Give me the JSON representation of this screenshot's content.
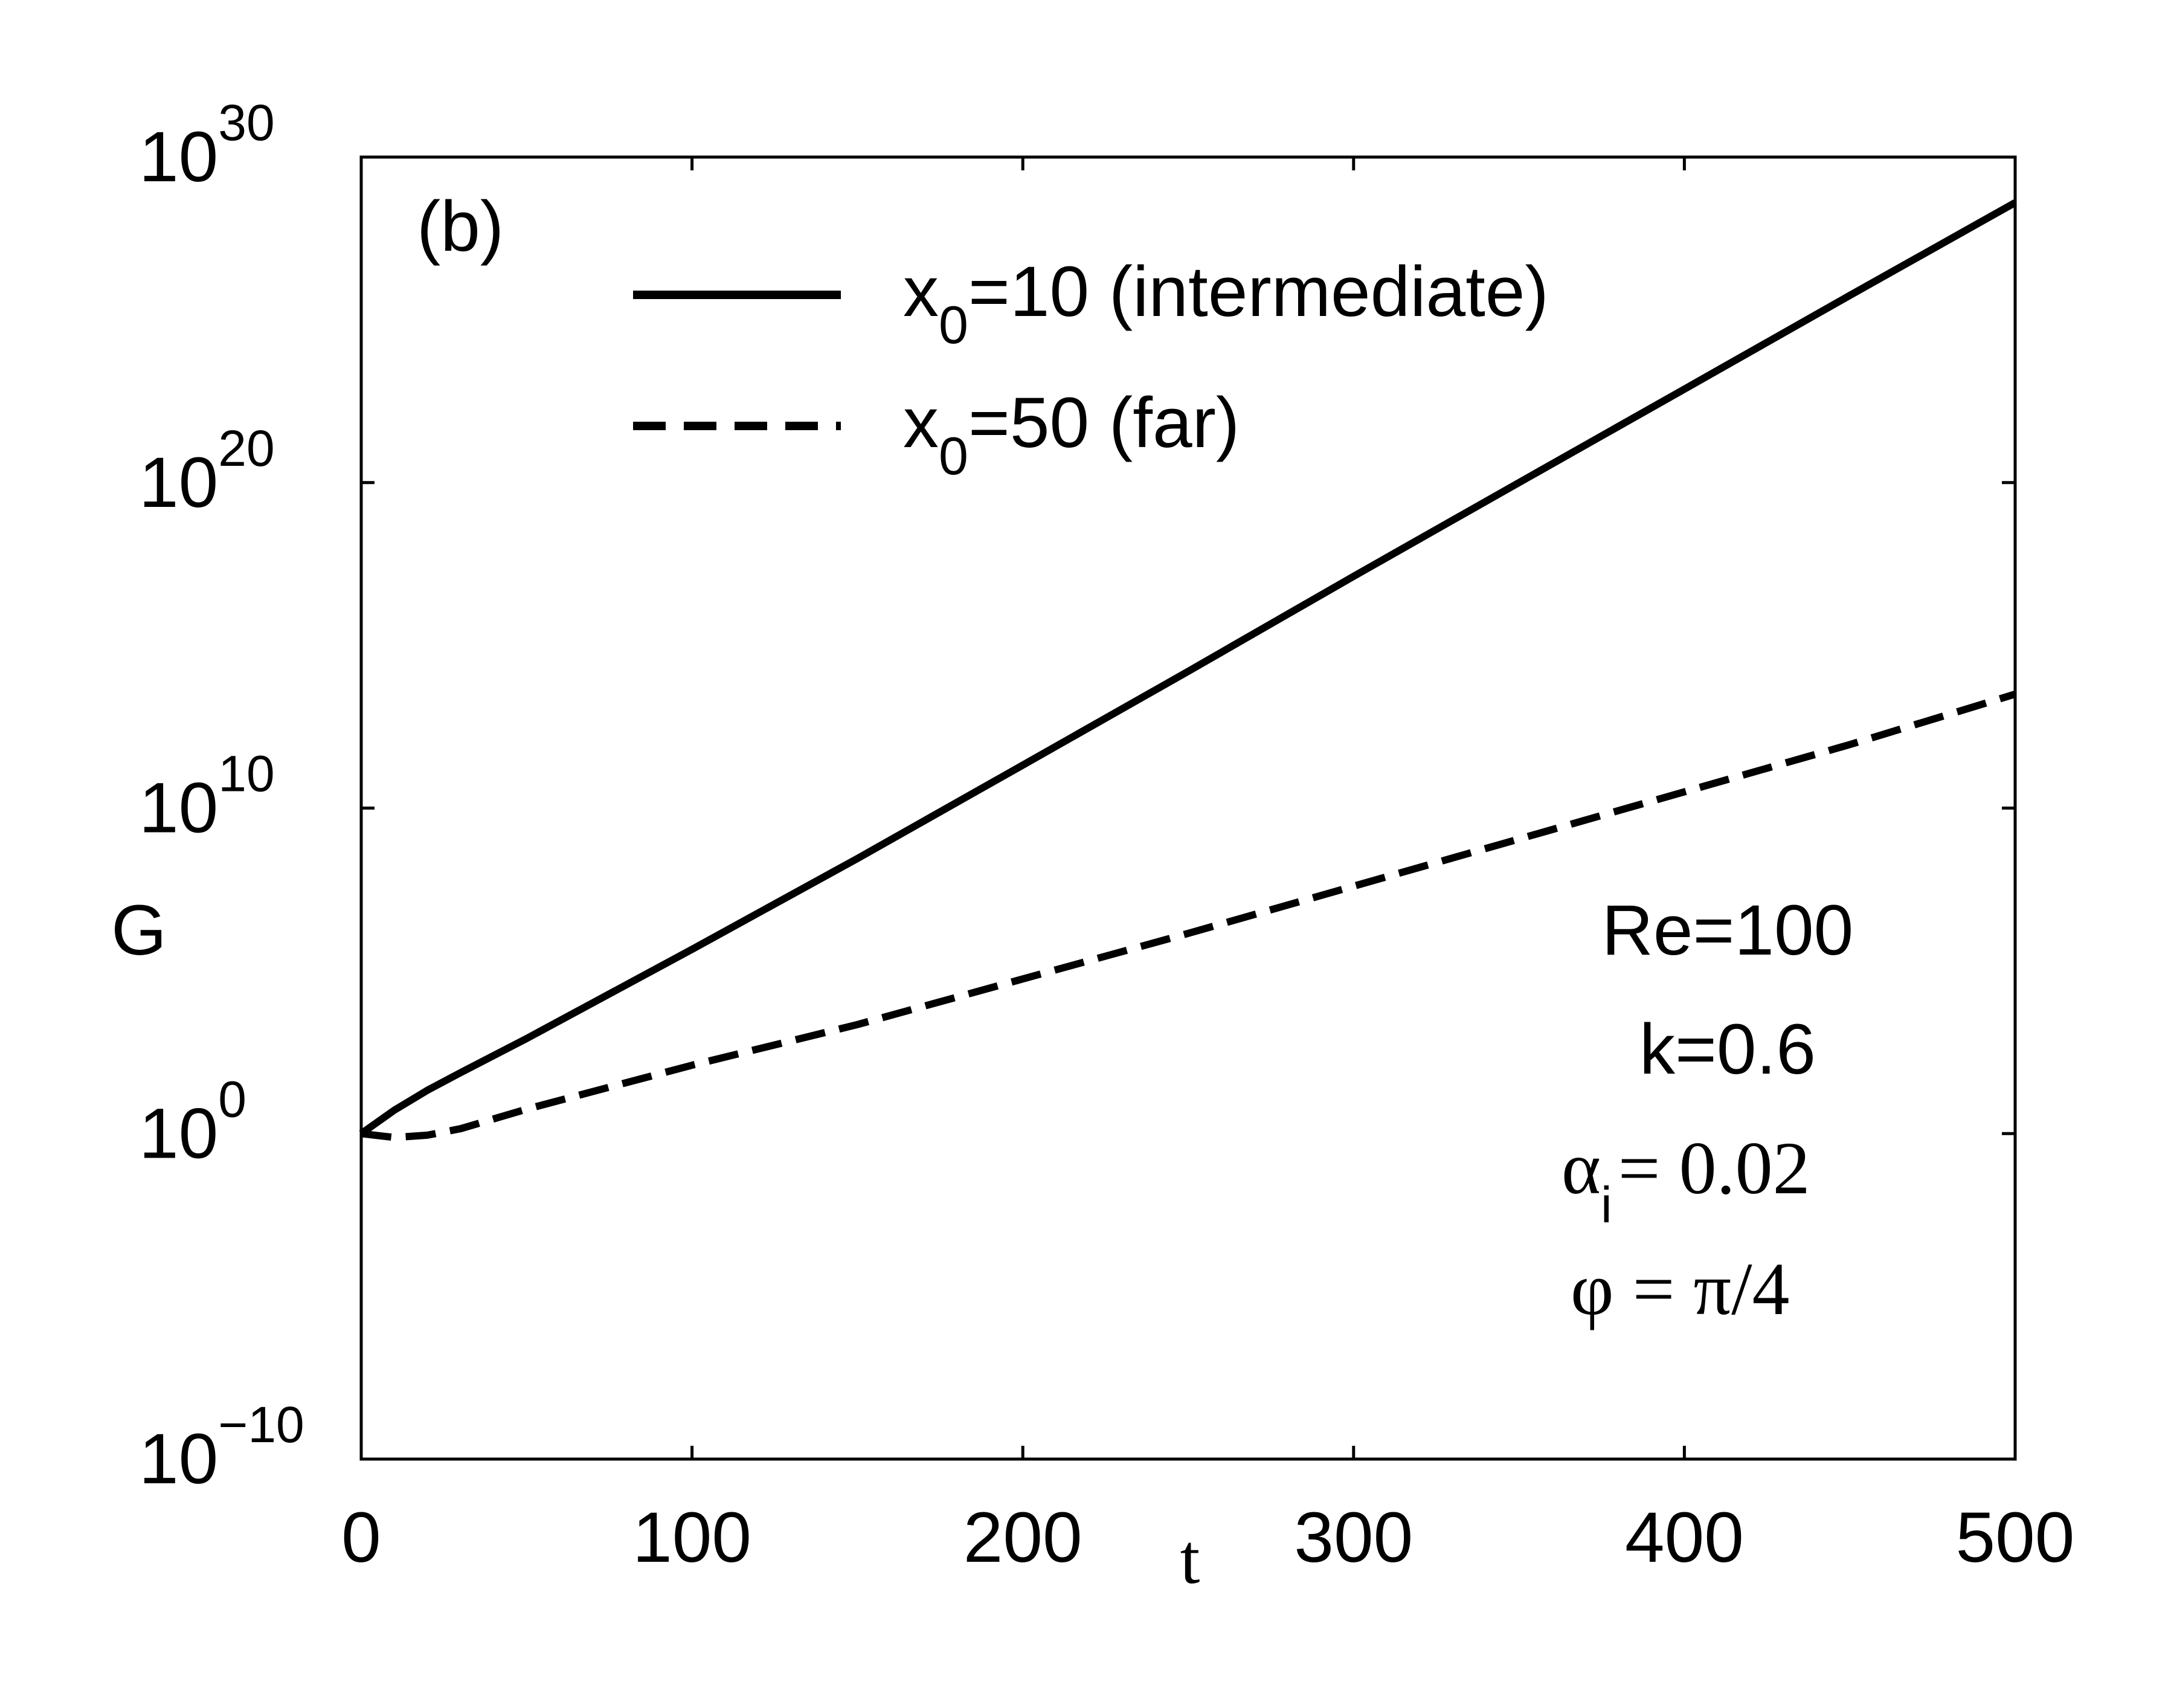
{
  "chart_data": {
    "type": "line",
    "panel_label": "(b)",
    "xlabel": "t",
    "ylabel": "G",
    "xlim": [
      0,
      500
    ],
    "ylim_exponent": [
      -10,
      30
    ],
    "yscale": "log",
    "x_ticks": [
      0,
      100,
      200,
      300,
      400,
      500
    ],
    "y_ticks": [
      {
        "base": "10",
        "exp": "30",
        "value": 30
      },
      {
        "base": "10",
        "exp": "20",
        "value": 20
      },
      {
        "base": "10",
        "exp": "10",
        "value": 10
      },
      {
        "base": "10",
        "exp": "0",
        "value": 0
      },
      {
        "base": "10",
        "exp": "−10",
        "value": -10
      }
    ],
    "series": [
      {
        "name": "x0=10 (intermediate)",
        "legend_main": "x",
        "legend_sub": "0",
        "legend_rest": "=10 (intermediate)",
        "style": "solid",
        "x": [
          0,
          10,
          20,
          30,
          50,
          100,
          150,
          200,
          250,
          300,
          350,
          400,
          450,
          500
        ],
        "log10_G": [
          0,
          0.72,
          1.33,
          1.87,
          2.92,
          5.66,
          8.45,
          11.32,
          14.2,
          17.12,
          20.0,
          22.87,
          25.75,
          28.6
        ]
      },
      {
        "name": "x0=50 (far)",
        "legend_main": "x",
        "legend_sub": "0",
        "legend_rest": "=50 (far)",
        "style": "dashed",
        "x": [
          0,
          10,
          20,
          30,
          50,
          100,
          150,
          200,
          250,
          300,
          350,
          400,
          450,
          500
        ],
        "log10_G": [
          0,
          -0.12,
          -0.05,
          0.15,
          0.75,
          2.1,
          3.35,
          4.75,
          6.15,
          7.6,
          9.05,
          10.5,
          11.95,
          13.5
        ]
      }
    ],
    "annotations": {
      "re": "Re=100",
      "k": "k=0.6",
      "alpha_symbol": "α",
      "alpha_sub": "i",
      "alpha_rest": "= 0.02",
      "phi": "φ = π/4"
    }
  }
}
